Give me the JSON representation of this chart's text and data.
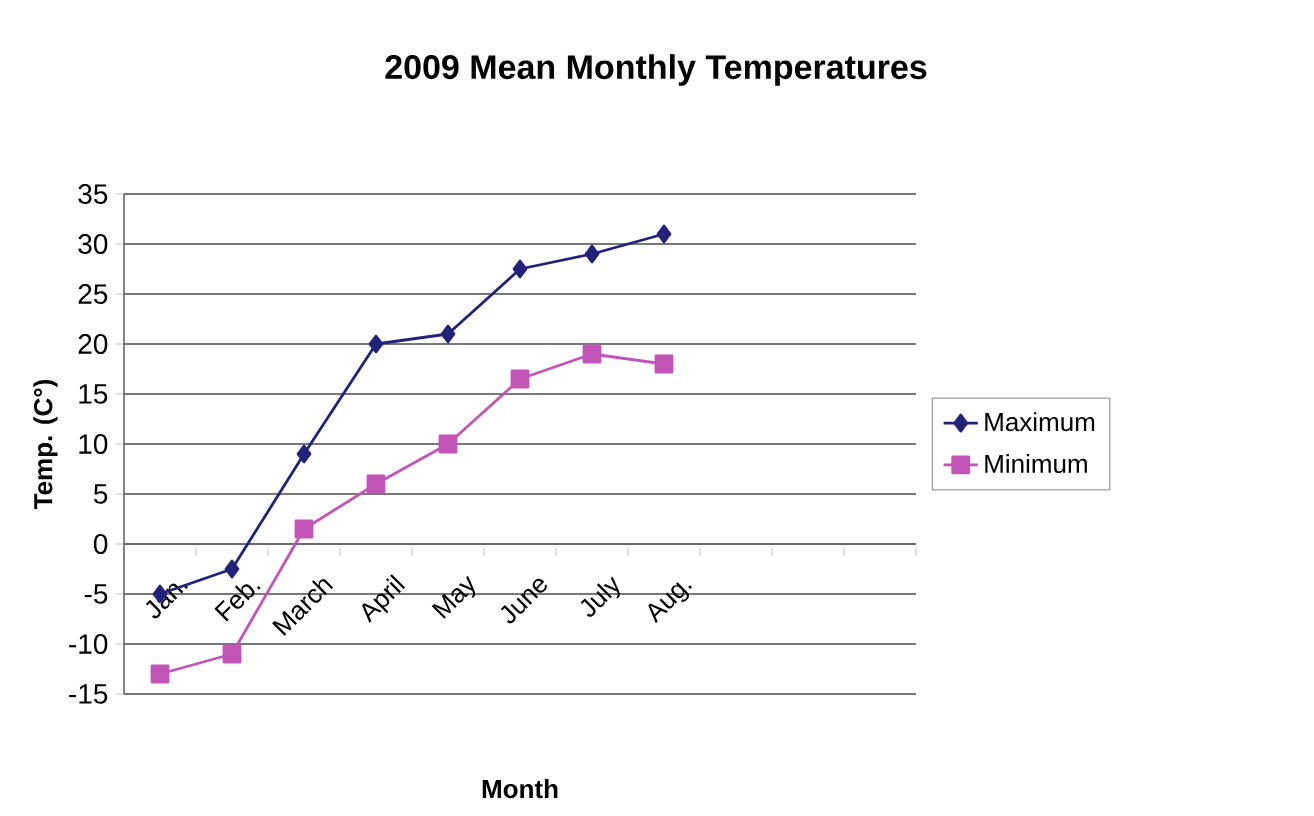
{
  "chart_data": {
    "type": "line",
    "title": "2009 Mean Monthly Temperatures",
    "xlabel": "Month",
    "ylabel": "Temp. (C°)",
    "categories": [
      "Jan.",
      "Feb.",
      "March",
      "April",
      "May",
      "June",
      "July",
      "Aug.",
      null,
      null,
      null
    ],
    "series": [
      {
        "name": "Maximum",
        "color": "#22227a",
        "marker": "diamond",
        "values": [
          -5,
          -2.5,
          9,
          20,
          21,
          27.5,
          29,
          31,
          null,
          null,
          null
        ]
      },
      {
        "name": "Minimum",
        "color": "#c455b8",
        "marker": "square",
        "values": [
          -13,
          -11,
          1.5,
          6,
          10,
          16.5,
          19,
          18,
          null,
          null,
          null
        ]
      }
    ],
    "ylim": [
      -15,
      35
    ],
    "yticks": [
      -15,
      -10,
      -5,
      0,
      5,
      10,
      15,
      20,
      25,
      30,
      35
    ],
    "grid": "y",
    "legend": "right"
  }
}
